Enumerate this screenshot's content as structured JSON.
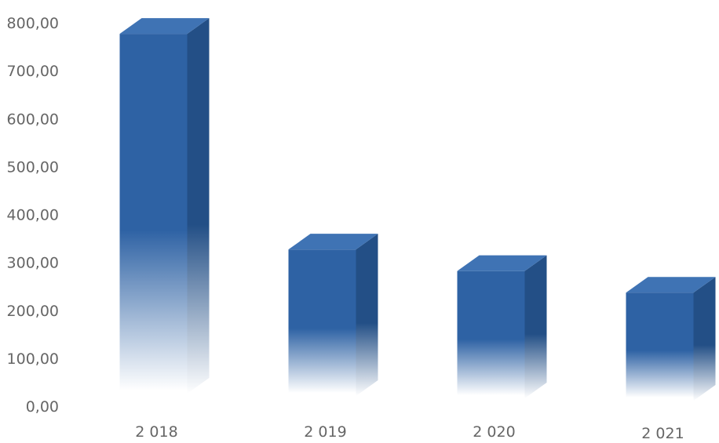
{
  "chart_data": {
    "type": "bar",
    "style": "3d-column",
    "categories": [
      "2 018",
      "2 019",
      "2 020",
      "2 021"
    ],
    "values": [
      790,
      340,
      295,
      250
    ],
    "yticks": [
      "0,00",
      "100,00",
      "200,00",
      "300,00",
      "400,00",
      "500,00",
      "600,00",
      "700,00",
      "800,00"
    ],
    "ylim": [
      0,
      800
    ],
    "grid": false,
    "legend": "none",
    "colors": {
      "front": "#2e62a4",
      "side": "#234f86",
      "top": "#3f73b4",
      "fade": "#ffffff",
      "axis_text": "#666666"
    }
  }
}
